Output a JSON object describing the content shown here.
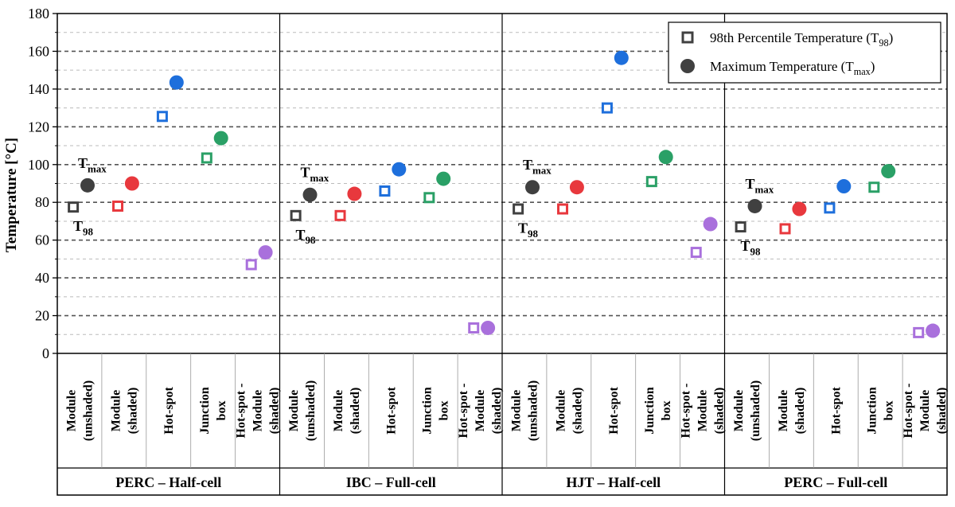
{
  "chart_data": {
    "type": "scatter",
    "ylabel": "Temperature [°C]",
    "ylim": [
      0,
      180
    ],
    "y_ticks": [
      "0",
      "20",
      "40",
      "60",
      "80",
      "100",
      "120",
      "140",
      "160",
      "180"
    ],
    "grid": "horizontal dashed",
    "legend_placement": "top-right",
    "legend": [
      {
        "name_main": "98th Percentile Temperature (T",
        "name_sub": "98",
        "name_tail": ")",
        "marker": "hollow-square",
        "color": "#404040"
      },
      {
        "name_main": "Maximum Temperature (T",
        "name_sub": "max",
        "name_tail": ")",
        "marker": "filled-circle",
        "color": "#404040"
      }
    ],
    "categories": [
      {
        "id": "module-unshaded",
        "lines": [
          "Module",
          "(unshaded)"
        ],
        "color": "#404040"
      },
      {
        "id": "module-shaded",
        "lines": [
          "Module",
          "(shaded)"
        ],
        "color": "#e8383d"
      },
      {
        "id": "hot-spot",
        "lines": [
          "Hot-spot"
        ],
        "color": "#1e6fdc"
      },
      {
        "id": "junction-box",
        "lines": [
          "Junction",
          "box"
        ],
        "color": "#2aa066"
      },
      {
        "id": "hotspot-minus-module",
        "lines": [
          "Hot-spot -",
          "Module",
          "(shaded)"
        ],
        "color": "#a970dc"
      }
    ],
    "groups": [
      {
        "name": "PERC – Half-cell",
        "t98": [
          77.5,
          78,
          125.5,
          103.5,
          47
        ],
        "tmax": [
          89,
          90,
          143.5,
          114,
          53.5
        ]
      },
      {
        "name": "IBC – Full-cell",
        "t98": [
          73,
          73,
          86,
          82.5,
          13.5
        ],
        "tmax": [
          84,
          84.5,
          97.5,
          92.5,
          13.5
        ]
      },
      {
        "name": "HJT – Half-cell",
        "t98": [
          76.5,
          76.5,
          130,
          91,
          53.5
        ],
        "tmax": [
          88,
          88,
          156.5,
          104,
          68.5
        ]
      },
      {
        "name": "PERC – Full-cell",
        "t98": [
          67,
          66,
          77,
          88,
          11
        ],
        "tmax": [
          78,
          76.5,
          88.5,
          96.5,
          12
        ]
      }
    ],
    "annotations": [
      {
        "main": "T",
        "sub": "max"
      },
      {
        "main": "T",
        "sub": "98"
      }
    ]
  }
}
